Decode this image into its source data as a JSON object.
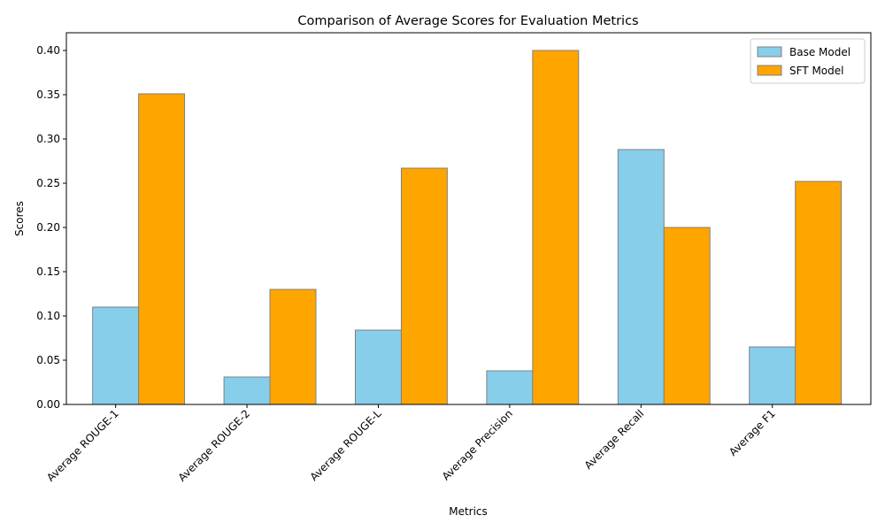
{
  "chart_data": {
    "type": "bar",
    "title": "Comparison of Average Scores for Evaluation Metrics",
    "xlabel": "Metrics",
    "ylabel": "Scores",
    "categories": [
      "Average ROUGE-1",
      "Average ROUGE-2",
      "Average ROUGE-L",
      "Average Precision",
      "Average Recall",
      "Average F1"
    ],
    "series": [
      {
        "name": "Base Model",
        "color": "#87ceeb",
        "values": [
          0.11,
          0.031,
          0.084,
          0.038,
          0.288,
          0.065
        ]
      },
      {
        "name": "SFT Model",
        "color": "#ffa500",
        "values": [
          0.351,
          0.13,
          0.267,
          0.4,
          0.2,
          0.252
        ]
      }
    ],
    "ylim": [
      0,
      0.42
    ],
    "yticks": [
      "0.00",
      "0.05",
      "0.10",
      "0.15",
      "0.20",
      "0.25",
      "0.30",
      "0.35",
      "0.40"
    ],
    "bar_edge_color": "#808080",
    "grid": false,
    "legend_position": "top-right"
  }
}
